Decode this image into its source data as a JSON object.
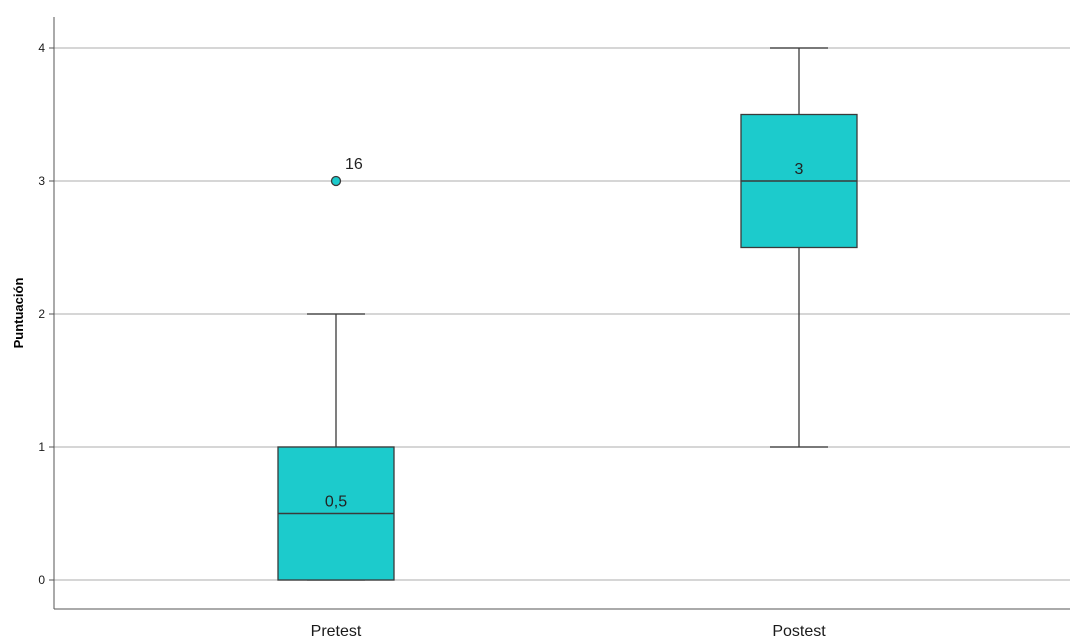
{
  "chart_data": {
    "type": "box",
    "ylabel": "Puntuación",
    "xlabel": "",
    "ylim": [
      -0.2,
      4.25
    ],
    "yticks": [
      "0",
      "1",
      "2",
      "3",
      "4"
    ],
    "ytick_values": [
      0,
      1,
      2,
      3,
      4
    ],
    "grid": true,
    "categories": [
      "Pretest",
      "Postest"
    ],
    "boxes": [
      {
        "category": "Pretest",
        "whisker_low": 0,
        "q1": 0,
        "median": 0.5,
        "q3": 1,
        "whisker_high": 2,
        "median_label": "0,5",
        "outliers": [
          {
            "value": 3,
            "label": "16"
          }
        ]
      },
      {
        "category": "Postest",
        "whisker_low": 1,
        "q1": 2.5,
        "median": 3,
        "q3": 3.5,
        "whisker_high": 4,
        "median_label": "3",
        "outliers": []
      }
    ],
    "colors": {
      "box_fill": "#1ccbcc",
      "box_stroke": "#3a3a3a",
      "grid": "#c8c8c8",
      "axis": "#555555"
    }
  }
}
